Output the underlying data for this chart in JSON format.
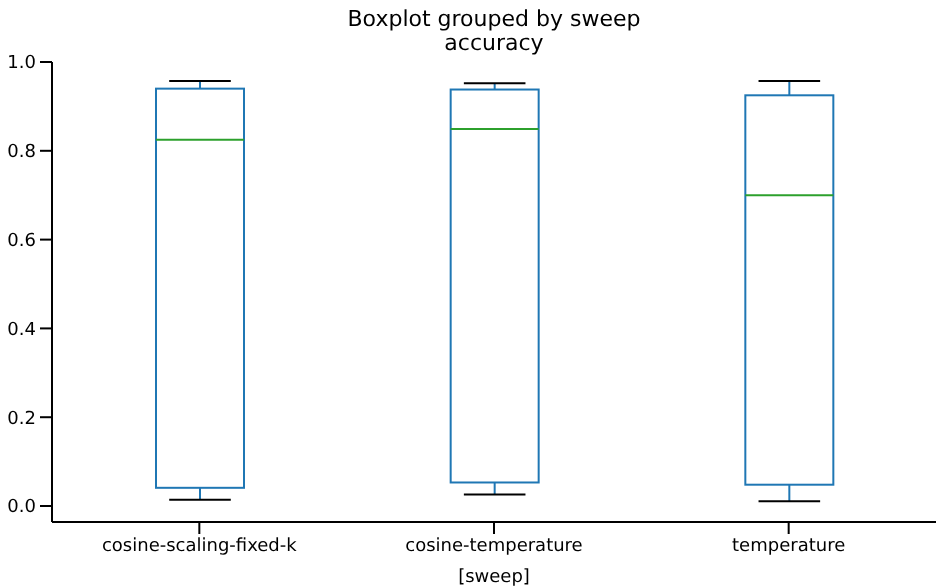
{
  "chart_data": {
    "type": "box",
    "title": "Boxplot grouped by sweep",
    "subtitle": "accuracy",
    "xlabel": "[sweep]",
    "categories": [
      "cosine-scaling-fixed-k",
      "cosine-temperature",
      "temperature"
    ],
    "series": [
      {
        "color": "#1f77b4",
        "boxes": [
          {
            "low": 0.014,
            "q1": 0.041,
            "median": 0.825,
            "q3": 0.94,
            "high": 0.957
          },
          {
            "low": 0.026,
            "q1": 0.053,
            "median": 0.849,
            "q3": 0.938,
            "high": 0.952
          },
          {
            "low": 0.011,
            "q1": 0.048,
            "median": 0.7,
            "q3": 0.925,
            "high": 0.957
          }
        ]
      }
    ],
    "ylim": [
      -0.036,
      1.0
    ],
    "yticks": [
      {
        "value": 0,
        "label": "0.0"
      },
      0.2,
      0.4,
      0.6,
      0.8,
      {
        "value": 1,
        "label": "1.0"
      }
    ]
  }
}
